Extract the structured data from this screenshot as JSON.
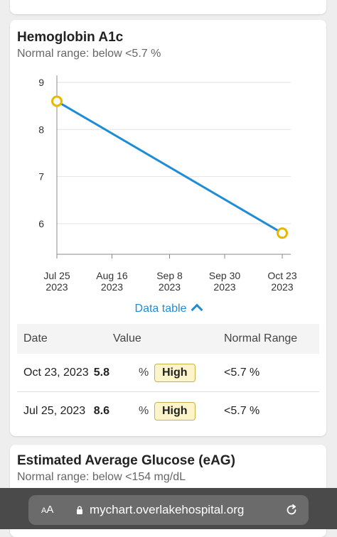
{
  "card_a1c": {
    "title": "Hemoglobin A1c",
    "subtitle": "Normal range: below <5.7 %",
    "toggle_label": "Data table",
    "table": {
      "headers": [
        "Date",
        "Value",
        "Normal Range"
      ],
      "rows": [
        {
          "date": "Oct 23, 2023",
          "value": "5.8",
          "unit": "%",
          "flag": "High",
          "range": "<5.7 %"
        },
        {
          "date": "Jul 25, 2023",
          "value": "8.6",
          "unit": "%",
          "flag": "High",
          "range": "<5.7 %"
        }
      ]
    }
  },
  "chart_data": {
    "type": "line",
    "title": "",
    "xlabel": "",
    "ylabel": "",
    "x_ticks": [
      {
        "label": [
          "Jul 25",
          "2023"
        ],
        "date": "2023-07-25"
      },
      {
        "label": [
          "Aug 16",
          "2023"
        ],
        "date": "2023-08-16"
      },
      {
        "label": [
          "Sep 8",
          "2023"
        ],
        "date": "2023-09-08"
      },
      {
        "label": [
          "Sep 30",
          "2023"
        ],
        "date": "2023-09-30"
      },
      {
        "label": [
          "Oct 23",
          "2023"
        ],
        "date": "2023-10-23"
      }
    ],
    "y_ticks": [
      6,
      7,
      8,
      9
    ],
    "ylim": [
      5.35,
      9
    ],
    "points": [
      {
        "x": "2023-07-25",
        "y": 8.6
      },
      {
        "x": "2023-10-23",
        "y": 5.8
      }
    ],
    "line_color": "#1f8dd6",
    "marker_color": "#e6b800",
    "grid": true
  },
  "card_eag": {
    "title": "Estimated Average Glucose (eAG)",
    "subtitle": "Normal range: below <154 mg/dL"
  },
  "browser": {
    "aa_small": "A",
    "aa_large": "A",
    "url": "mychart.overlakehospital.org"
  }
}
